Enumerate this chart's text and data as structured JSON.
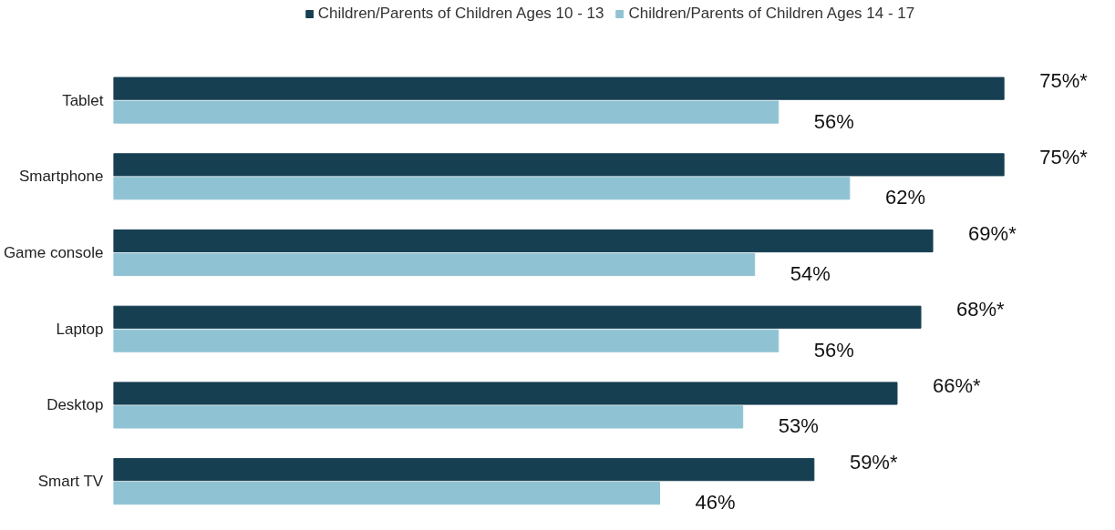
{
  "chart_data": {
    "type": "bar",
    "orientation": "horizontal",
    "legend": "top",
    "categories": [
      "Tablet",
      "Smartphone",
      "Game console",
      "Laptop",
      "Desktop",
      "Smart TV"
    ],
    "series": [
      {
        "name": "Children/Parents of Children Ages 10 - 13",
        "color": "#173f52",
        "values": [
          75,
          75,
          69,
          68,
          66,
          59
        ],
        "value_labels": [
          "75%*",
          "75%*",
          "69%*",
          "68%*",
          "66%*",
          "59%*"
        ]
      },
      {
        "name": "Children/Parents of Children Ages 14 - 17",
        "color": "#8fc3d3",
        "values": [
          56,
          62,
          54,
          56,
          53,
          46
        ],
        "value_labels": [
          "56%",
          "62%",
          "54%",
          "56%",
          "53%",
          "46%"
        ]
      }
    ]
  }
}
